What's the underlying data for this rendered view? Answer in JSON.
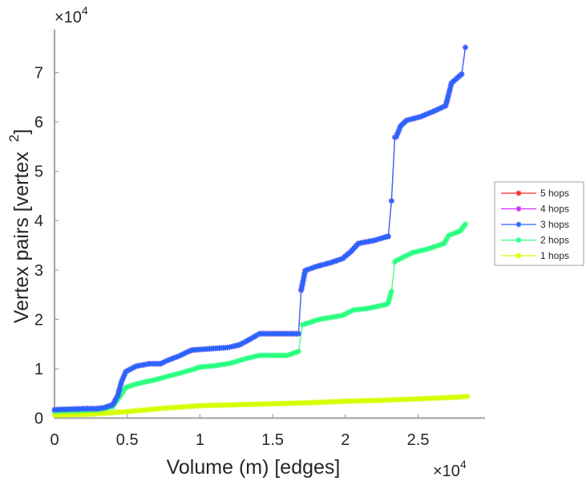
{
  "chart_data": {
    "type": "line",
    "title": "",
    "xlabel": "Volume (m) [edges]",
    "ylabel": "Vertex pairs [vertex",
    "ylabel_superscript": "2",
    "ylabel_suffix": "]",
    "x_multiplier": "×10",
    "x_multiplier_exp": "4",
    "y_multiplier": "×10",
    "y_multiplier_exp": "4",
    "xlim": [
      0,
      2.96
    ],
    "ylim": [
      0,
      7.87
    ],
    "xticks": [
      0,
      0.5,
      1,
      1.5,
      2,
      2.5
    ],
    "xtick_labels": [
      "0",
      "0.5",
      "1",
      "1.5",
      "2",
      "2.5"
    ],
    "yticks": [
      0,
      1,
      2,
      3,
      4,
      5,
      6,
      7
    ],
    "ytick_labels": [
      "0",
      "1",
      "2",
      "3",
      "4",
      "5",
      "6",
      "7"
    ],
    "grid": false,
    "legend_position": "right",
    "units_note": "x and y values in units of 10^4",
    "series": [
      {
        "name": "5 hops",
        "color": "#ff2a2a",
        "x": [
          0,
          0.1,
          0.2,
          0.29,
          0.34,
          0.4,
          0.435,
          0.46,
          0.49,
          0.56,
          0.65,
          0.73,
          0.77,
          0.85,
          0.93,
          0.95,
          1.05,
          1.19,
          1.27,
          1.34,
          1.41,
          1.5,
          1.6,
          1.678,
          1.696,
          1.724,
          1.8,
          1.9,
          1.98,
          2.04,
          2.09,
          2.2,
          2.29,
          2.295,
          2.317,
          2.34,
          2.35,
          2.38,
          2.42,
          2.52,
          2.61,
          2.69,
          2.73,
          2.8,
          2.825
        ],
        "y": [
          0.17,
          0.18,
          0.19,
          0.19,
          0.21,
          0.27,
          0.46,
          0.73,
          0.94,
          1.05,
          1.1,
          1.1,
          1.16,
          1.25,
          1.36,
          1.38,
          1.4,
          1.43,
          1.48,
          1.59,
          1.71,
          1.71,
          1.71,
          1.71,
          2.59,
          2.99,
          3.07,
          3.15,
          3.23,
          3.38,
          3.54,
          3.6,
          3.68,
          3.68,
          4.4,
          5.69,
          5.7,
          5.92,
          6.03,
          6.11,
          6.22,
          6.33,
          6.79,
          6.97,
          7.51
        ]
      },
      {
        "name": "4 hops",
        "color": "#d02aff",
        "x": [
          0,
          0.1,
          0.2,
          0.29,
          0.34,
          0.4,
          0.435,
          0.46,
          0.49,
          0.56,
          0.65,
          0.73,
          0.77,
          0.85,
          0.93,
          0.95,
          1.05,
          1.19,
          1.27,
          1.34,
          1.41,
          1.5,
          1.6,
          1.678,
          1.696,
          1.724,
          1.8,
          1.9,
          1.98,
          2.04,
          2.09,
          2.2,
          2.29,
          2.295,
          2.317,
          2.34,
          2.35,
          2.38,
          2.42,
          2.52,
          2.61,
          2.69,
          2.73,
          2.8,
          2.825
        ],
        "y": [
          0.17,
          0.18,
          0.19,
          0.19,
          0.21,
          0.27,
          0.46,
          0.73,
          0.94,
          1.05,
          1.1,
          1.1,
          1.16,
          1.25,
          1.36,
          1.38,
          1.4,
          1.43,
          1.48,
          1.59,
          1.71,
          1.71,
          1.71,
          1.71,
          2.59,
          2.99,
          3.07,
          3.15,
          3.23,
          3.38,
          3.54,
          3.6,
          3.68,
          3.68,
          4.4,
          5.69,
          5.7,
          5.92,
          6.03,
          6.11,
          6.22,
          6.33,
          6.79,
          6.97,
          7.51
        ]
      },
      {
        "name": "3 hops",
        "color": "#2a64ff",
        "x": [
          0,
          0.1,
          0.2,
          0.29,
          0.34,
          0.4,
          0.435,
          0.46,
          0.49,
          0.56,
          0.65,
          0.73,
          0.77,
          0.85,
          0.93,
          0.95,
          1.05,
          1.19,
          1.27,
          1.34,
          1.41,
          1.5,
          1.6,
          1.678,
          1.696,
          1.724,
          1.8,
          1.9,
          1.98,
          2.04,
          2.09,
          2.2,
          2.29,
          2.295,
          2.317,
          2.34,
          2.35,
          2.38,
          2.42,
          2.52,
          2.61,
          2.69,
          2.73,
          2.8,
          2.825
        ],
        "y": [
          0.17,
          0.18,
          0.19,
          0.19,
          0.21,
          0.27,
          0.46,
          0.73,
          0.94,
          1.05,
          1.1,
          1.1,
          1.16,
          1.25,
          1.36,
          1.38,
          1.4,
          1.43,
          1.48,
          1.59,
          1.71,
          1.71,
          1.71,
          1.71,
          2.59,
          2.99,
          3.07,
          3.15,
          3.23,
          3.38,
          3.54,
          3.6,
          3.68,
          3.68,
          4.4,
          5.69,
          5.7,
          5.92,
          6.03,
          6.11,
          6.22,
          6.33,
          6.79,
          6.97,
          7.51
        ]
      },
      {
        "name": "2 hops",
        "color": "#2aff80",
        "x": [
          0,
          0.1,
          0.2,
          0.29,
          0.34,
          0.4,
          0.44,
          0.49,
          0.55,
          0.62,
          0.7,
          0.77,
          0.85,
          0.97,
          0.99,
          1.1,
          1.21,
          1.31,
          1.41,
          1.5,
          1.6,
          1.678,
          1.705,
          1.82,
          1.98,
          2.055,
          2.15,
          2.28,
          2.295,
          2.317,
          2.34,
          2.35,
          2.46,
          2.57,
          2.68,
          2.71,
          2.79,
          2.825
        ],
        "y": [
          0.14,
          0.15,
          0.16,
          0.17,
          0.19,
          0.23,
          0.4,
          0.62,
          0.68,
          0.73,
          0.78,
          0.84,
          0.9,
          1.0,
          1.03,
          1.06,
          1.11,
          1.2,
          1.27,
          1.27,
          1.27,
          1.35,
          1.89,
          2.0,
          2.08,
          2.19,
          2.22,
          2.3,
          2.33,
          2.57,
          3.16,
          3.19,
          3.35,
          3.43,
          3.54,
          3.7,
          3.79,
          3.93
        ]
      },
      {
        "name": "1 hops",
        "color": "#d4ff00",
        "x": [
          0,
          0.25,
          0.5,
          0.75,
          1.0,
          1.25,
          1.5,
          1.75,
          2.0,
          2.25,
          2.5,
          2.75,
          2.84
        ],
        "y": [
          0.06,
          0.08,
          0.13,
          0.2,
          0.25,
          0.27,
          0.29,
          0.31,
          0.34,
          0.36,
          0.39,
          0.42,
          0.44
        ]
      }
    ]
  }
}
